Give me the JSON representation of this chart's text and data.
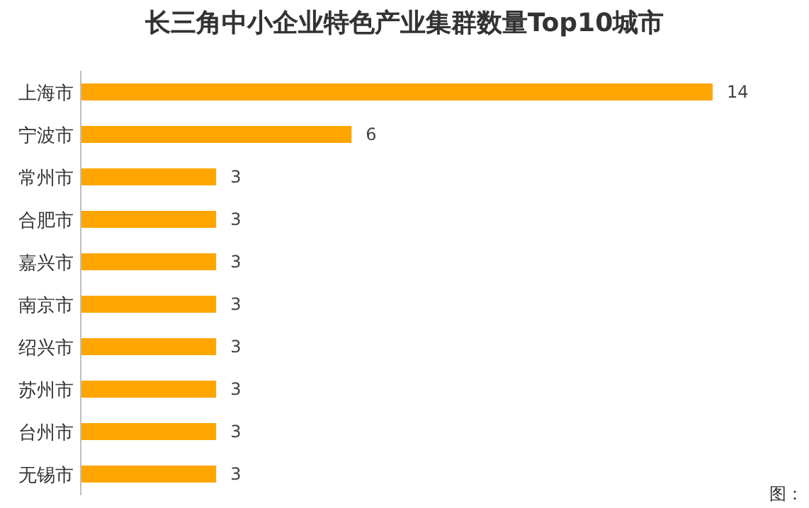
{
  "chart_data": {
    "type": "bar",
    "orientation": "horizontal",
    "title": "长三角中小企业特色产业集群数量Top10城市",
    "categories": [
      "上海市",
      "宁波市",
      "常州市",
      "合肥市",
      "嘉兴市",
      "南京市",
      "绍兴市",
      "苏州市",
      "台州市",
      "无锡市"
    ],
    "values": [
      14,
      6,
      3,
      3,
      3,
      3,
      3,
      3,
      3,
      3
    ],
    "color": "#ffa500",
    "data_labels": true,
    "annotations": [
      "图："
    ]
  }
}
